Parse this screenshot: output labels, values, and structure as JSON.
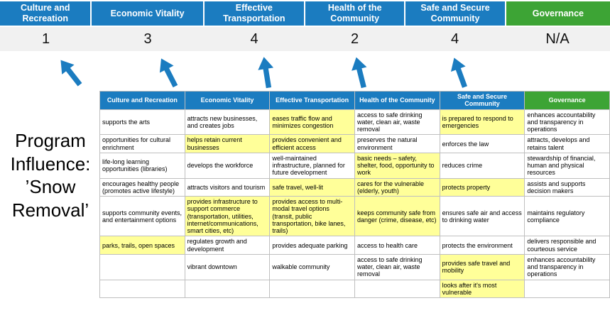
{
  "page": {
    "title": "Program Influence: ’Snow Removal’"
  },
  "colors": {
    "pillar_blue": "#1b7cc0",
    "pillar_green": "#3da435",
    "highlight_yellow": "#ffff99",
    "score_strip_gray": "#f1f1f1",
    "arrow_blue": "#1b7cc0"
  },
  "scoreboard": [
    {
      "label": "Culture and Recreation",
      "score": "1",
      "accent": "blue"
    },
    {
      "label": "Economic Vitality",
      "score": "3",
      "accent": "blue"
    },
    {
      "label": "Effective Transportation",
      "score": "4",
      "accent": "blue"
    },
    {
      "label": "Health of the Community",
      "score": "2",
      "accent": "blue"
    },
    {
      "label": "Safe and Secure Community",
      "score": "4",
      "accent": "blue"
    },
    {
      "label": "Governance",
      "score": "N/A",
      "accent": "green"
    }
  ],
  "matrix": {
    "headers": [
      {
        "label": "Culture and Recreation",
        "accent": "blue"
      },
      {
        "label": "Economic Vitality",
        "accent": "blue"
      },
      {
        "label": "Effective Transportation",
        "accent": "blue"
      },
      {
        "label": "Health of the Community",
        "accent": "blue"
      },
      {
        "label": "Safe and Secure Community",
        "accent": "blue"
      },
      {
        "label": "Governance",
        "accent": "green"
      }
    ],
    "rows": [
      [
        {
          "text": "supports the arts",
          "highlight": false
        },
        {
          "text": "attracts new businesses, and creates jobs",
          "highlight": false
        },
        {
          "text": "eases traffic flow and minimizes congestion",
          "highlight": true
        },
        {
          "text": "access to safe drinking water, clean air, waste removal",
          "highlight": false
        },
        {
          "text": "is prepared to respond to emergencies",
          "highlight": true
        },
        {
          "text": "enhances accountability and transparency in operations",
          "highlight": false
        }
      ],
      [
        {
          "text": "opportunities for cultural enrichment",
          "highlight": false
        },
        {
          "text": "helps retain current businesses",
          "highlight": true
        },
        {
          "text": "provides convenient and efficient access",
          "highlight": true
        },
        {
          "text": "preserves the natural environment",
          "highlight": false
        },
        {
          "text": "enforces the law",
          "highlight": false
        },
        {
          "text": "attracts, develops and retains talent",
          "highlight": false
        }
      ],
      [
        {
          "text": "life-long learning opportunities (libraries)",
          "highlight": false
        },
        {
          "text": "develops the workforce",
          "highlight": false
        },
        {
          "text": "well-maintained infrastructure, planned for future development",
          "highlight": false
        },
        {
          "text": "basic needs – safety, shelter, food, opportunity to work",
          "highlight": true
        },
        {
          "text": "reduces crime",
          "highlight": false
        },
        {
          "text": "stewardship of financial, human and physical resources",
          "highlight": false
        }
      ],
      [
        {
          "text": "encourages healthy people (promotes active lifestyle)",
          "highlight": false
        },
        {
          "text": "attracts visitors and tourism",
          "highlight": false
        },
        {
          "text": "safe travel, well-lit",
          "highlight": true
        },
        {
          "text": "cares for the vulnerable (elderly, youth)",
          "highlight": true
        },
        {
          "text": "protects property",
          "highlight": true
        },
        {
          "text": "assists and supports decision makers",
          "highlight": false
        }
      ],
      [
        {
          "text": "supports community events, and entertainment options",
          "highlight": false
        },
        {
          "text": "provides infrastructure to support commerce (transportation, utilities, internet/communications, smart cities, etc)",
          "highlight": true
        },
        {
          "text": "provides access to multi-modal travel options (transit, public transportation, bike lanes, trails)",
          "highlight": true
        },
        {
          "text": "keeps community safe from danger (crime, disease, etc)",
          "highlight": true
        },
        {
          "text": "ensures safe air and access to drinking water",
          "highlight": false
        },
        {
          "text": "maintains regulatory compliance",
          "highlight": false
        }
      ],
      [
        {
          "text": "parks, trails, open spaces",
          "highlight": true
        },
        {
          "text": "regulates growth and development",
          "highlight": false
        },
        {
          "text": "provides adequate parking",
          "highlight": false
        },
        {
          "text": "access to health care",
          "highlight": false
        },
        {
          "text": "protects the environment",
          "highlight": false
        },
        {
          "text": "delivers responsible and courteous service",
          "highlight": false
        }
      ],
      [
        {
          "text": "",
          "highlight": false
        },
        {
          "text": "vibrant downtown",
          "highlight": false
        },
        {
          "text": "walkable community",
          "highlight": false
        },
        {
          "text": "access to safe drinking water, clean air, waste removal",
          "highlight": false
        },
        {
          "text": "provides safe travel and mobility",
          "highlight": true
        },
        {
          "text": "enhances accountability and transparency in operations",
          "highlight": false
        }
      ],
      [
        {
          "text": "",
          "highlight": false
        },
        {
          "text": "",
          "highlight": false
        },
        {
          "text": "",
          "highlight": false
        },
        {
          "text": "",
          "highlight": false
        },
        {
          "text": "looks after it's most vulnerable",
          "highlight": true
        },
        {
          "text": "",
          "highlight": false
        }
      ]
    ]
  }
}
